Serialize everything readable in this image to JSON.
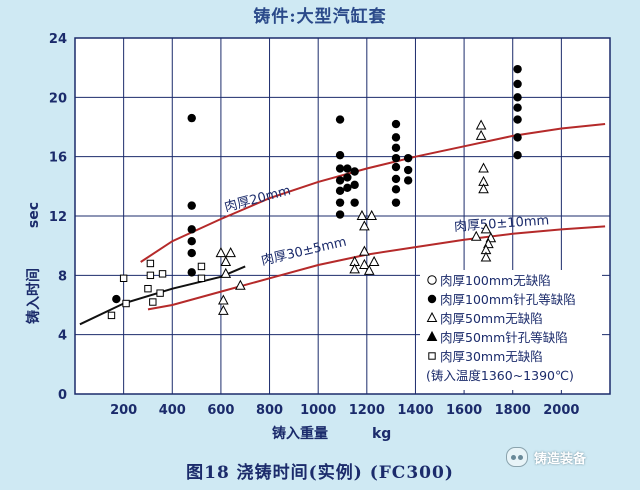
{
  "page": {
    "title": "铸件:大型汽缸套",
    "caption": "图18 浇铸时间(实例) (FC300)",
    "watermark": "铸造装备"
  },
  "colors": {
    "background": "#cfe9f3",
    "plot_bg": "#ffffff",
    "curve": "#b52a2a",
    "black_curve": "#111111",
    "text": "#1b2b6b"
  },
  "chart_data": {
    "type": "scatter",
    "title": "",
    "xlabel_text": "铸入重量",
    "xlabel_unit": "kg",
    "ylabel_text": "铸入时间",
    "ylabel_unit": "sec",
    "xlim": [
      0,
      2200
    ],
    "ylim": [
      0,
      24
    ],
    "xticks": [
      200,
      400,
      600,
      800,
      1000,
      1200,
      1400,
      1600,
      1800,
      2000
    ],
    "yticks": [
      0,
      4,
      8,
      12,
      16,
      20,
      24
    ],
    "grid": true,
    "legend_position": "bottom-right",
    "legend": [
      {
        "marker": "open-circle",
        "label": "肉厚100mm无缺陷"
      },
      {
        "marker": "filled-circle",
        "label": "肉厚100mm针孔等缺陷"
      },
      {
        "marker": "open-triangle",
        "label": "肉厚50mm无缺陷"
      },
      {
        "marker": "filled-triangle",
        "label": "肉厚50mm针孔等缺陷"
      },
      {
        "marker": "open-square",
        "label": "肉厚30mm无缺陷"
      }
    ],
    "legend_note": "(铸入温度1360~1390℃)",
    "curves": [
      {
        "label": "肉厚20mm",
        "label_at": [
          620,
          12.3
        ],
        "label_angle": -15,
        "color": "#b52a2a",
        "points": [
          [
            270,
            8.9
          ],
          [
            400,
            10.3
          ],
          [
            600,
            11.8
          ],
          [
            800,
            13.2
          ],
          [
            1000,
            14.3
          ],
          [
            1200,
            15.2
          ],
          [
            1400,
            16.0
          ],
          [
            1600,
            16.7
          ],
          [
            1800,
            17.4
          ],
          [
            2000,
            17.9
          ],
          [
            2180,
            18.2
          ]
        ]
      },
      {
        "label": "肉厚30±5mm",
        "label_at": [
          770,
          8.7
        ],
        "label_angle": -13,
        "color": "#b52a2a",
        "points": [
          [
            300,
            5.7
          ],
          [
            400,
            6.0
          ],
          [
            600,
            6.9
          ],
          [
            800,
            7.8
          ],
          [
            1000,
            8.7
          ],
          [
            1200,
            9.4
          ],
          [
            1400,
            9.9
          ],
          [
            1600,
            10.4
          ],
          [
            1800,
            10.8
          ],
          [
            2000,
            11.1
          ],
          [
            2180,
            11.3
          ]
        ]
      },
      {
        "label": "肉厚50±10mm",
        "label_at": [
          1560,
          11.0
        ],
        "label_angle": -4,
        "color": "#b52a2a",
        "points": []
      },
      {
        "label": "",
        "color": "#111111",
        "points": [
          [
            20,
            4.7
          ],
          [
            200,
            6.1
          ],
          [
            400,
            7.1
          ],
          [
            600,
            7.9
          ],
          [
            700,
            8.6
          ]
        ]
      }
    ],
    "series": [
      {
        "marker": "filled-circle",
        "points": [
          [
            170,
            6.4
          ],
          [
            480,
            18.6
          ],
          [
            480,
            12.7
          ],
          [
            480,
            11.1
          ],
          [
            480,
            10.3
          ],
          [
            480,
            9.5
          ],
          [
            480,
            8.2
          ],
          [
            1090,
            18.5
          ],
          [
            1090,
            16.1
          ],
          [
            1090,
            15.2
          ],
          [
            1090,
            14.4
          ],
          [
            1090,
            13.7
          ],
          [
            1090,
            12.9
          ],
          [
            1090,
            12.1
          ],
          [
            1120,
            15.2
          ],
          [
            1120,
            14.6
          ],
          [
            1120,
            13.9
          ],
          [
            1150,
            15.0
          ],
          [
            1150,
            14.1
          ],
          [
            1150,
            12.9
          ],
          [
            1320,
            18.2
          ],
          [
            1320,
            17.3
          ],
          [
            1320,
            16.6
          ],
          [
            1320,
            15.9
          ],
          [
            1320,
            15.3
          ],
          [
            1320,
            14.5
          ],
          [
            1320,
            13.8
          ],
          [
            1320,
            12.9
          ],
          [
            1370,
            15.9
          ],
          [
            1370,
            15.1
          ],
          [
            1370,
            14.4
          ],
          [
            1820,
            21.9
          ],
          [
            1820,
            20.9
          ],
          [
            1820,
            20.0
          ],
          [
            1820,
            19.3
          ],
          [
            1820,
            18.5
          ],
          [
            1820,
            17.3
          ],
          [
            1820,
            16.1
          ]
        ]
      },
      {
        "marker": "open-triangle",
        "points": [
          [
            600,
            9.5
          ],
          [
            620,
            8.9
          ],
          [
            640,
            9.5
          ],
          [
            620,
            8.1
          ],
          [
            610,
            6.3
          ],
          [
            610,
            5.6
          ],
          [
            680,
            7.3
          ],
          [
            1150,
            8.9
          ],
          [
            1150,
            8.4
          ],
          [
            1180,
            12.0
          ],
          [
            1220,
            12.0
          ],
          [
            1190,
            11.3
          ],
          [
            1190,
            9.6
          ],
          [
            1190,
            8.7
          ],
          [
            1210,
            8.3
          ],
          [
            1230,
            8.9
          ],
          [
            1670,
            18.1
          ],
          [
            1670,
            17.4
          ],
          [
            1680,
            15.2
          ],
          [
            1680,
            14.3
          ],
          [
            1680,
            13.8
          ],
          [
            1650,
            10.6
          ],
          [
            1690,
            11.1
          ],
          [
            1710,
            10.5
          ],
          [
            1700,
            10.1
          ],
          [
            1690,
            9.7
          ],
          [
            1690,
            9.2
          ]
        ]
      },
      {
        "marker": "open-square",
        "points": [
          [
            150,
            5.3
          ],
          [
            200,
            7.8
          ],
          [
            210,
            6.1
          ],
          [
            310,
            8.8
          ],
          [
            310,
            8.0
          ],
          [
            300,
            7.1
          ],
          [
            320,
            6.2
          ],
          [
            360,
            8.1
          ],
          [
            350,
            6.8
          ],
          [
            520,
            8.6
          ],
          [
            520,
            7.8
          ]
        ]
      }
    ]
  }
}
